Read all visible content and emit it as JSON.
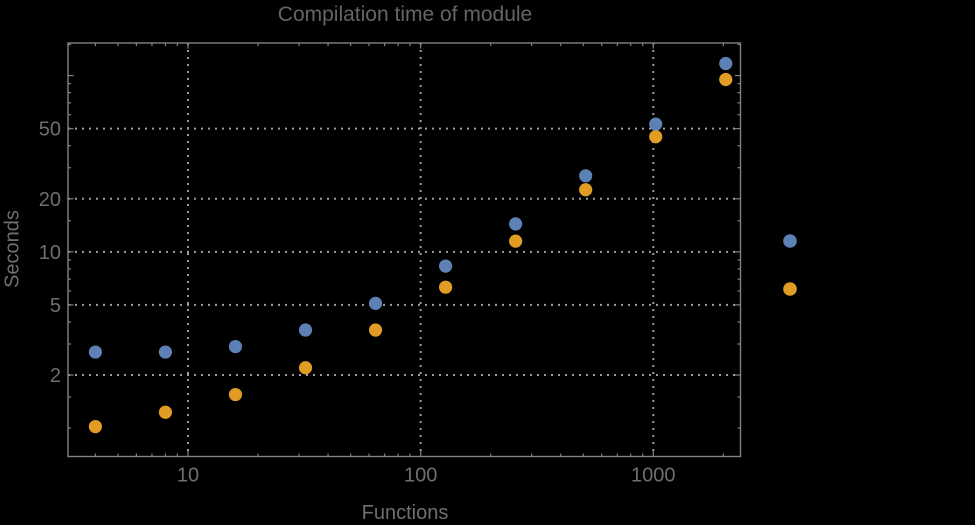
{
  "chart_data": {
    "type": "scatter",
    "title": "Compilation time of module",
    "xlabel": "Functions",
    "ylabel": "Seconds",
    "x_scale": "log",
    "y_scale": "log",
    "xlim": [
      3.05,
      2370
    ],
    "ylim": [
      0.69,
      153
    ],
    "grid": "dotted",
    "x": [
      4,
      8,
      16,
      32,
      64,
      128,
      256,
      512,
      1024,
      2048
    ],
    "series": [
      {
        "name": "series-1",
        "color": "#5E81B5",
        "values": [
          2.7,
          2.7,
          2.9,
          3.6,
          5.1,
          8.3,
          14.4,
          27,
          53,
          117
        ]
      },
      {
        "name": "series-2",
        "color": "#E19C24",
        "values": [
          1.02,
          1.23,
          1.55,
          2.2,
          3.6,
          6.3,
          11.5,
          22.5,
          45,
          95
        ]
      }
    ],
    "x_major_ticks": [
      10,
      100,
      1000
    ],
    "x_tick_labels": [
      "10",
      "100",
      "1000"
    ],
    "x_minor_ticks": [
      4,
      5,
      6,
      7,
      8,
      9,
      20,
      30,
      40,
      50,
      60,
      70,
      80,
      90,
      200,
      300,
      400,
      500,
      600,
      700,
      800,
      900,
      2000
    ],
    "y_major_ticks": [
      2,
      5,
      10,
      20,
      50
    ],
    "y_tick_labels": [
      "2",
      "5",
      "10",
      "20",
      "50"
    ],
    "y_unlabeled_major_ticks": [
      100
    ],
    "y_minor_ticks": [
      1,
      1.5,
      3,
      4,
      6,
      7,
      8,
      9,
      15,
      30,
      40,
      60,
      70,
      80,
      90,
      150
    ],
    "x_gridlines": [
      10,
      100,
      1000
    ],
    "y_gridlines": [
      2,
      5,
      10,
      20,
      50
    ],
    "legend": {
      "position": "right-outside",
      "labels_visible": false,
      "markers": [
        {
          "name": "legend-marker-series-1",
          "color": "#5E81B5"
        },
        {
          "name": "legend-marker-series-2",
          "color": "#E19C24"
        }
      ]
    }
  },
  "style": {
    "background": "#000000",
    "title_color": "#656565",
    "label_color": "#6f6f6f",
    "frame_color": "#828282",
    "grid_color": "#9e9e9e"
  }
}
